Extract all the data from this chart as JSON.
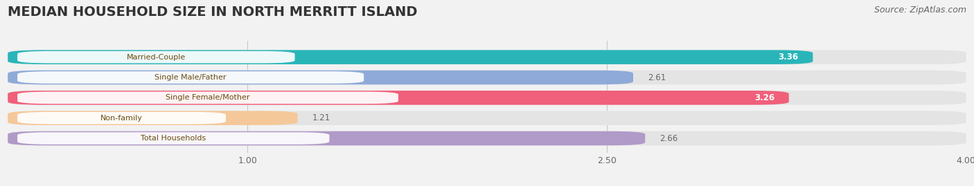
{
  "title": "MEDIAN HOUSEHOLD SIZE IN NORTH MERRITT ISLAND",
  "source": "Source: ZipAtlas.com",
  "categories": [
    "Married-Couple",
    "Single Male/Father",
    "Single Female/Mother",
    "Non-family",
    "Total Households"
  ],
  "values": [
    3.36,
    2.61,
    3.26,
    1.21,
    2.66
  ],
  "bar_colors": [
    "#29b5b8",
    "#8faad8",
    "#f0607a",
    "#f5c89a",
    "#b09ac8"
  ],
  "value_inside": [
    true,
    false,
    true,
    false,
    false
  ],
  "xlim": [
    0,
    4.0
  ],
  "xstart": 0.0,
  "xticks": [
    1.0,
    2.5,
    4.0
  ],
  "xticklabels": [
    "1.00",
    "2.50",
    "4.00"
  ],
  "title_fontsize": 14,
  "source_fontsize": 9,
  "bar_height": 0.7,
  "background_color": "#f2f2f2",
  "bar_background_color": "#e4e4e4",
  "label_text_color": "#6b4c11",
  "value_inside_color": "#ffffff",
  "value_outside_color": "#666666"
}
